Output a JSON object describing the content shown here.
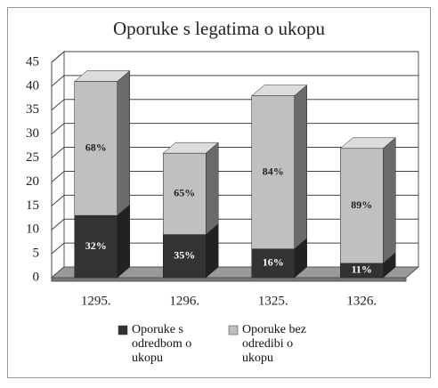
{
  "chart_data": {
    "type": "bar3d_stacked",
    "title": "Oporuke s legatima o ukopu",
    "categories": [
      "1295.",
      "1296.",
      "1325.",
      "1326."
    ],
    "series": [
      {
        "name": "Oporuke s odredbom o ukopu",
        "color": "#333333",
        "values": [
          13,
          9,
          6,
          3
        ],
        "percent_labels": [
          "32%",
          "35%",
          "16%",
          "11%"
        ]
      },
      {
        "name": "Oporuke bez odredibi o ukopu",
        "color": "#c0c0c0",
        "values": [
          28,
          17,
          32,
          24
        ],
        "percent_labels": [
          "68%",
          "65%",
          "84%",
          "89%"
        ]
      }
    ],
    "ylim": [
      0,
      45
    ],
    "yticks": [
      0,
      5,
      10,
      15,
      20,
      25,
      30,
      35,
      40,
      45
    ],
    "grid": true
  }
}
